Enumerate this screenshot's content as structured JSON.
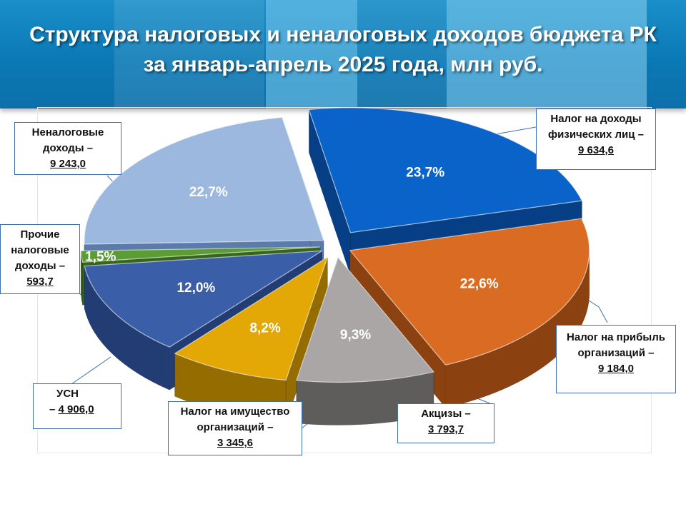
{
  "title": {
    "line1": "Структура налоговых и неналоговых доходов бюджета РК",
    "line2": "за январь-апрель 2025 года, млн руб."
  },
  "colors": {
    "banner": "#0a79b6",
    "callout_border": "#3f6fb0"
  },
  "chart_data": {
    "type": "pie",
    "title": "Структура налоговых и неналоговых доходов бюджета РК за январь-апрель 2025 года, млн руб.",
    "unit": "млн руб.",
    "slices": [
      {
        "name": "Налог на доходы физических лиц",
        "label_lines": [
          "Налог на доходы",
          "физических лиц –"
        ],
        "value_text": "9 634,6",
        "value": 9634.6,
        "percent_text": "23,7%",
        "percent": 23.7,
        "color": "#0a63c9",
        "side": "#073f86"
      },
      {
        "name": "Налог на прибыль организаций",
        "label_lines": [
          "Налог на прибыль",
          "организаций –"
        ],
        "value_text": "9 184,0",
        "value": 9184.0,
        "percent_text": "22,6%",
        "percent": 22.6,
        "color": "#d96c22",
        "side": "#8c4210"
      },
      {
        "name": "Акцизы",
        "label_lines": [
          "Акцизы –"
        ],
        "value_text": "3 793,7",
        "value": 3793.7,
        "percent_text": "9,3%",
        "percent": 9.3,
        "color": "#aaa6a6",
        "side": "#5f5c5c"
      },
      {
        "name": "Налог на имущество организаций",
        "label_lines": [
          "Налог на имущество",
          "организаций –"
        ],
        "value_text": "3 345,6",
        "value": 3345.6,
        "percent_text": "8,2%",
        "percent": 8.2,
        "color": "#e3a805",
        "side": "#946c00"
      },
      {
        "name": "УСН",
        "label_lines": [
          "УСН",
          "–"
        ],
        "value_text": "4 906,0",
        "value": 4906.0,
        "percent_text": "12,0%",
        "percent": 12.0,
        "color": "#3a5fa8",
        "side": "#223c74"
      },
      {
        "name": "Прочие налоговые доходы",
        "label_lines": [
          "Прочие",
          "налоговые",
          "доходы –"
        ],
        "value_text": "593,7",
        "value": 593.7,
        "percent_text": "1,5%",
        "percent": 1.5,
        "color": "#5b9c35",
        "side": "#37651c"
      },
      {
        "name": "Неналоговые доходы",
        "label_lines": [
          "Неналоговые",
          "доходы –"
        ],
        "value_text": "9 243,0",
        "value": 9243.0,
        "percent_text": "22,7%",
        "percent": 22.7,
        "color": "#9cb8de",
        "side": "#5a7bab"
      }
    ]
  }
}
